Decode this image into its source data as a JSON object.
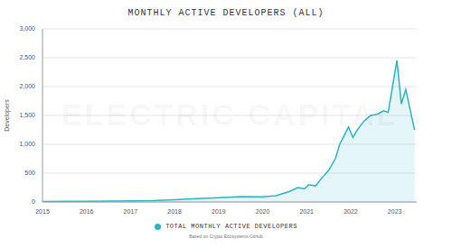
{
  "chart_data": {
    "type": "area",
    "title": "MONTHLY ACTIVE DEVELOPERS (ALL)",
    "y_label": "Developers",
    "watermark": "ELECTRIC CAPITAL",
    "source": "Based on Crypto Ecosystems Github",
    "x": [
      2015.0,
      2015.5,
      2016.0,
      2016.5,
      2017.0,
      2017.5,
      2018.0,
      2018.5,
      2019.0,
      2019.5,
      2020.0,
      2020.3,
      2020.6,
      2020.8,
      2020.95,
      2021.05,
      2021.2,
      2021.35,
      2021.5,
      2021.65,
      2021.75,
      2021.85,
      2021.95,
      2022.05,
      2022.15,
      2022.3,
      2022.45,
      2022.6,
      2022.75,
      2022.85,
      2022.95,
      2023.05,
      2023.15,
      2023.25,
      2023.35,
      2023.45
    ],
    "series": [
      {
        "name": "TOTAL MONTHLY ACTIVE DEVELOPERS",
        "color": "#2bb3c9",
        "values": [
          8,
          10,
          12,
          15,
          20,
          25,
          40,
          60,
          75,
          95,
          90,
          110,
          180,
          250,
          230,
          300,
          280,
          420,
          550,
          750,
          1000,
          1150,
          1300,
          1120,
          1250,
          1400,
          1500,
          1520,
          1580,
          1550,
          2000,
          2450,
          1700,
          1950,
          1600,
          1250
        ]
      }
    ],
    "xlim": [
      2015,
      2023.5
    ],
    "xticks": [
      2015,
      2016,
      2017,
      2018,
      2019,
      2020,
      2021,
      2022,
      2023
    ],
    "ylim": [
      0,
      3000
    ],
    "yticks": [
      0,
      500,
      {
        "value": 1000,
        "label": "1,000"
      },
      {
        "value": 1500,
        "label": "1,500"
      },
      {
        "value": 2000,
        "label": "2,000"
      },
      {
        "value": 2500,
        "label": "2,500"
      },
      {
        "value": 3000,
        "label": "3,000"
      }
    ],
    "grid": true,
    "legend": "bottom"
  }
}
